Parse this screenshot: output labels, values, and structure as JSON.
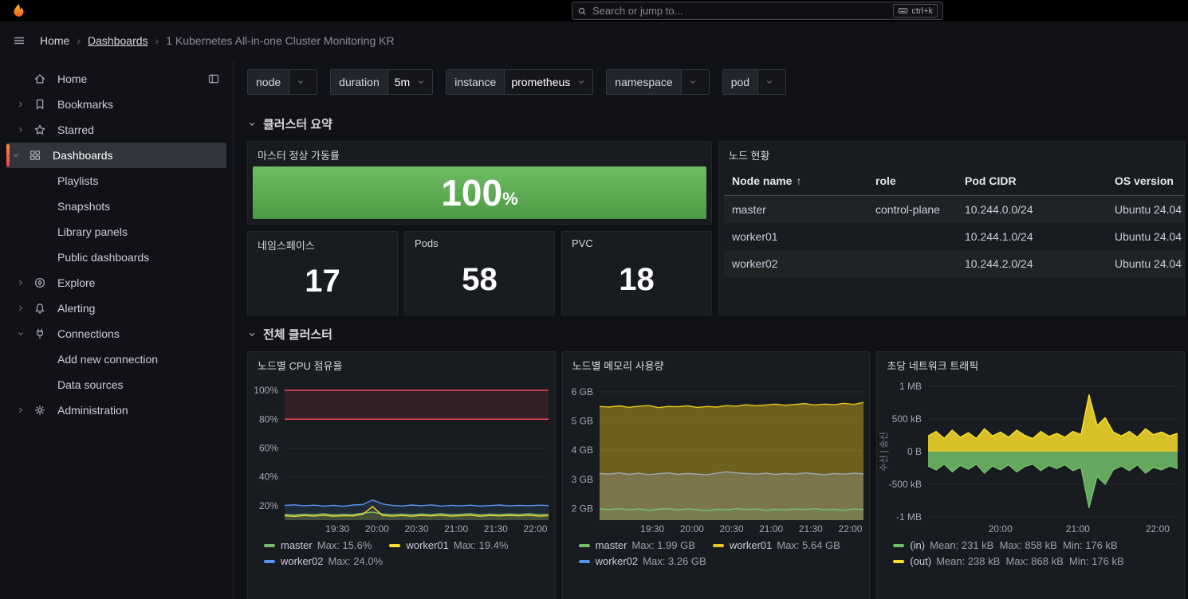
{
  "topbar": {
    "search_placeholder": "Search or jump to...",
    "shortcut": "ctrl+k"
  },
  "breadcrumb": {
    "items": [
      "Home",
      "Dashboards",
      "1 Kubernetes All-in-one Cluster Monitoring KR"
    ]
  },
  "sidebar": {
    "accent_gradient": [
      "#ff8833",
      "#f53e4c"
    ],
    "items": [
      {
        "label": "Home",
        "icon": "home",
        "level": 1,
        "trailing": "dock"
      },
      {
        "label": "Bookmarks",
        "icon": "bookmark",
        "level": 1,
        "chevron": "right"
      },
      {
        "label": "Starred",
        "icon": "star",
        "level": 1,
        "chevron": "right"
      },
      {
        "label": "Dashboards",
        "icon": "apps",
        "level": 1,
        "chevron": "down",
        "selected": true
      },
      {
        "label": "Playlists",
        "level": 2
      },
      {
        "label": "Snapshots",
        "level": 2
      },
      {
        "label": "Library panels",
        "level": 2
      },
      {
        "label": "Public dashboards",
        "level": 2
      },
      {
        "label": "Explore",
        "icon": "compass",
        "level": 1,
        "chevron": "right"
      },
      {
        "label": "Alerting",
        "icon": "bell",
        "level": 1,
        "chevron": "right"
      },
      {
        "label": "Connections",
        "icon": "plug",
        "level": 1,
        "chevron": "down"
      },
      {
        "label": "Add new connection",
        "level": 2
      },
      {
        "label": "Data sources",
        "level": 2
      },
      {
        "label": "Administration",
        "icon": "gear",
        "level": 1,
        "chevron": "right"
      }
    ]
  },
  "filters": [
    {
      "label": "node",
      "value": ""
    },
    {
      "label": "duration",
      "value": "5m"
    },
    {
      "label": "instance",
      "value": "prometheus"
    },
    {
      "label": "namespace",
      "value": ""
    },
    {
      "label": "pod",
      "value": ""
    }
  ],
  "sections": {
    "summary": "클러스터 요약",
    "cluster": "전체 클러스터"
  },
  "uptime_panel": {
    "title": "마스터 정상 가동률",
    "value": "100",
    "unit": "%",
    "gradient": [
      "#70bd64",
      "#4c9a43"
    ]
  },
  "node_table": {
    "title": "노드 현황",
    "columns": [
      "Node name",
      "role",
      "Pod CIDR",
      "OS version"
    ],
    "sort_column": 0,
    "sort_dir": "asc",
    "rows": [
      [
        "master",
        "control-plane",
        "10.244.0.0/24",
        "Ubuntu 24.04"
      ],
      [
        "worker01",
        "",
        "10.244.1.0/24",
        "Ubuntu 24.04"
      ],
      [
        "worker02",
        "",
        "10.244.2.0/24",
        "Ubuntu 24.04"
      ]
    ]
  },
  "stats": [
    {
      "title": "네임스페이스",
      "value": "17"
    },
    {
      "title": "Pods",
      "value": "58"
    },
    {
      "title": "PVC",
      "value": "18"
    }
  ],
  "charts": [
    {
      "type": "line",
      "title": "노드별 CPU 점유율",
      "ylim": [
        10,
        105
      ],
      "yticks": [
        {
          "v": 100,
          "label": "100%"
        },
        {
          "v": 80,
          "label": "80%"
        },
        {
          "v": 60,
          "label": "60%"
        },
        {
          "v": 40,
          "label": "40%"
        },
        {
          "v": 20,
          "label": "20%"
        }
      ],
      "xticks": [
        {
          "f": 0.2,
          "label": "19:30"
        },
        {
          "f": 0.35,
          "label": "20:00"
        },
        {
          "f": 0.5,
          "label": "20:30"
        },
        {
          "f": 0.65,
          "label": "21:00"
        },
        {
          "f": 0.8,
          "label": "21:30"
        },
        {
          "f": 0.95,
          "label": "22:00"
        }
      ],
      "bands": [
        {
          "from": 80,
          "to": 100,
          "fill": "rgba(242,73,92,0.12)",
          "lines": [
            80,
            100
          ],
          "line_color": "#f2495c"
        }
      ],
      "series": [
        {
          "name": "worker02",
          "color": "#5794f2",
          "fill": 0.12,
          "values": [
            20.2,
            20.6,
            19.9,
            20.4,
            19.7,
            20.2,
            19.6,
            20.5,
            20.9,
            24,
            21.2,
            20.3,
            19.8,
            20.5,
            20,
            20.6,
            19.7,
            20.3,
            19.9,
            20.4,
            19.8,
            20.1,
            20.5,
            19.9,
            20.3,
            20,
            20.4,
            20.1
          ]
        },
        {
          "name": "master",
          "color": "#73bf69",
          "fill": 0.12,
          "values": [
            14,
            13.6,
            14.2,
            13.8,
            14.4,
            13.7,
            14.1,
            13.9,
            14.8,
            15.6,
            14.3,
            13.8,
            14.2,
            13.7,
            14.3,
            13.9,
            14.5,
            13.8,
            14.1,
            14.4,
            13.7,
            14.2,
            13.9,
            14.3,
            14,
            14.4,
            13.8,
            14.1
          ]
        },
        {
          "name": "worker01",
          "color": "#fade2a",
          "fill": 0.12,
          "values": [
            13,
            12.6,
            13.2,
            12.8,
            13.4,
            12.7,
            13.1,
            12.9,
            14.2,
            19.4,
            13.3,
            12.8,
            13.2,
            12.7,
            13.3,
            12.9,
            13.5,
            12.8,
            13.1,
            13.4,
            12.7,
            13.2,
            12.9,
            13.3,
            13,
            13.4,
            12.8,
            13.1
          ]
        }
      ],
      "legend": [
        {
          "color": "#73bf69",
          "label": "master",
          "stats": "Max: 15.6%"
        },
        {
          "color": "#fade2a",
          "label": "worker01",
          "stats": "Max: 19.4%"
        },
        {
          "color": "#5794f2",
          "label": "worker02",
          "stats": "Max: 24.0%"
        }
      ]
    },
    {
      "type": "area",
      "title": "노드별 메모리 사용량",
      "ylim": [
        1.6,
        6.3
      ],
      "yticks": [
        {
          "v": 6,
          "label": "6 GB"
        },
        {
          "v": 5,
          "label": "5 GB"
        },
        {
          "v": 4,
          "label": "4 GB"
        },
        {
          "v": 3,
          "label": "3 GB"
        },
        {
          "v": 2,
          "label": "2 GB"
        }
      ],
      "xticks": [
        {
          "f": 0.2,
          "label": "19:30"
        },
        {
          "f": 0.35,
          "label": "20:00"
        },
        {
          "f": 0.5,
          "label": "20:30"
        },
        {
          "f": 0.65,
          "label": "21:00"
        },
        {
          "f": 0.8,
          "label": "21:30"
        },
        {
          "f": 0.95,
          "label": "22:00"
        }
      ],
      "series": [
        {
          "name": "worker01",
          "color": "#e7c31b",
          "fill": 0.42,
          "values": [
            5.5,
            5.48,
            5.52,
            5.47,
            5.51,
            5.53,
            5.46,
            5.5,
            5.49,
            5.52,
            5.47,
            5.5,
            5.48,
            5.53,
            5.51,
            5.56,
            5.52,
            5.55,
            5.58,
            5.54,
            5.57,
            5.6,
            5.55,
            5.58,
            5.56,
            5.61,
            5.57,
            5.64
          ]
        },
        {
          "name": "worker02",
          "color": "#9fa7b3",
          "fill": 0.3,
          "values": [
            3.2,
            3.18,
            3.22,
            3.17,
            3.21,
            3.16,
            3.19,
            3.22,
            3.17,
            3.2,
            3.18,
            3.16,
            3.21,
            3.26,
            3.22,
            3.2,
            3.18,
            3.21,
            3.17,
            3.2,
            3.18,
            3.22,
            3.19,
            3.16,
            3.2,
            3.18,
            3.21,
            3.19
          ]
        },
        {
          "name": "master",
          "color": "#73bf69",
          "fill": 0.1,
          "values": [
            1.99,
            1.96,
            1.99,
            1.95,
            1.98,
            1.94,
            1.97,
            1.99,
            1.95,
            1.98,
            1.96,
            1.93,
            1.97,
            1.95,
            1.99,
            1.96,
            1.98,
            1.94,
            1.97,
            1.95,
            1.98,
            1.96,
            1.99,
            1.95,
            1.97,
            1.94,
            1.98,
            1.96
          ]
        }
      ],
      "legend": [
        {
          "color": "#73bf69",
          "label": "master",
          "stats": "Max: 1.99 GB"
        },
        {
          "color": "#e7c31b",
          "label": "worker01",
          "stats": "Max: 5.64 GB"
        },
        {
          "color": "#5794f2",
          "label": "worker02",
          "stats": "Max: 3.26 GB"
        }
      ]
    },
    {
      "type": "area",
      "title": "초당 네트워크 트래픽",
      "ylabel": "수신 | 송신",
      "ylim": [
        -1.05,
        1.05
      ],
      "yticks": [
        {
          "v": 1,
          "label": "1 MB"
        },
        {
          "v": 0.5,
          "label": "500 kB"
        },
        {
          "v": 0,
          "label": "0 B"
        },
        {
          "v": -0.5,
          "label": "-500 kB"
        },
        {
          "v": -1,
          "label": "-1 MB"
        }
      ],
      "xticks": [
        {
          "f": 0.29,
          "label": "20:00"
        },
        {
          "f": 0.6,
          "label": "21:00"
        },
        {
          "f": 0.92,
          "label": "22:00"
        }
      ],
      "series": [
        {
          "name": "(out)",
          "color": "#fade2a",
          "fill": 0.85,
          "baseline": 0,
          "values": [
            0.24,
            0.31,
            0.2,
            0.33,
            0.22,
            0.29,
            0.2,
            0.35,
            0.24,
            0.3,
            0.22,
            0.33,
            0.25,
            0.2,
            0.31,
            0.23,
            0.28,
            0.22,
            0.31,
            0.26,
            0.87,
            0.4,
            0.52,
            0.3,
            0.24,
            0.31,
            0.22,
            0.35,
            0.26,
            0.3,
            0.24,
            0.28
          ]
        },
        {
          "name": "(in)",
          "color": "#73bf69",
          "fill": 0.85,
          "baseline": 0,
          "values": [
            -0.22,
            -0.28,
            -0.19,
            -0.31,
            -0.21,
            -0.27,
            -0.19,
            -0.33,
            -0.22,
            -0.28,
            -0.2,
            -0.31,
            -0.23,
            -0.19,
            -0.29,
            -0.21,
            -0.26,
            -0.2,
            -0.29,
            -0.24,
            -0.86,
            -0.38,
            -0.5,
            -0.28,
            -0.22,
            -0.29,
            -0.2,
            -0.33,
            -0.24,
            -0.28,
            -0.22,
            -0.26
          ]
        }
      ],
      "legend": [
        {
          "color": "#73bf69",
          "label": "(in)",
          "stats": "Mean: 231 kB  Max: 858 kB  Min: 176 kB"
        },
        {
          "color": "#fade2a",
          "label": "(out)",
          "stats": "Mean: 238 kB  Max: 868 kB  Min: 176 kB"
        }
      ]
    }
  ]
}
